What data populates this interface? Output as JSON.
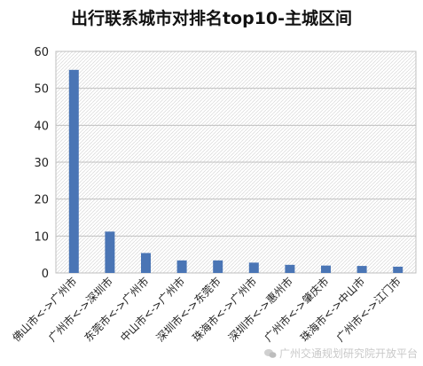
{
  "chart_data": {
    "type": "bar",
    "title": "出行联系城市对排名top10-主城区间",
    "categories": [
      "佛山市<->广州市",
      "广州市<->深圳市",
      "东莞市<->广州市",
      "中山市<->广州市",
      "深圳市<->东莞市",
      "珠海市<->广州市",
      "深圳市<->惠州市",
      "广州市<->肇庆市",
      "珠海市<->中山市",
      "广州市<->江门市"
    ],
    "values": [
      55,
      11.2,
      5.4,
      3.4,
      3.4,
      2.8,
      2.2,
      2.0,
      1.9,
      1.7
    ],
    "ylim": [
      0,
      60
    ],
    "yticks": [
      0,
      10,
      20,
      30,
      40,
      50,
      60
    ],
    "grid": true,
    "bar_color": "#4a75b5"
  },
  "watermark": "广州交通规划研究院开放平台"
}
